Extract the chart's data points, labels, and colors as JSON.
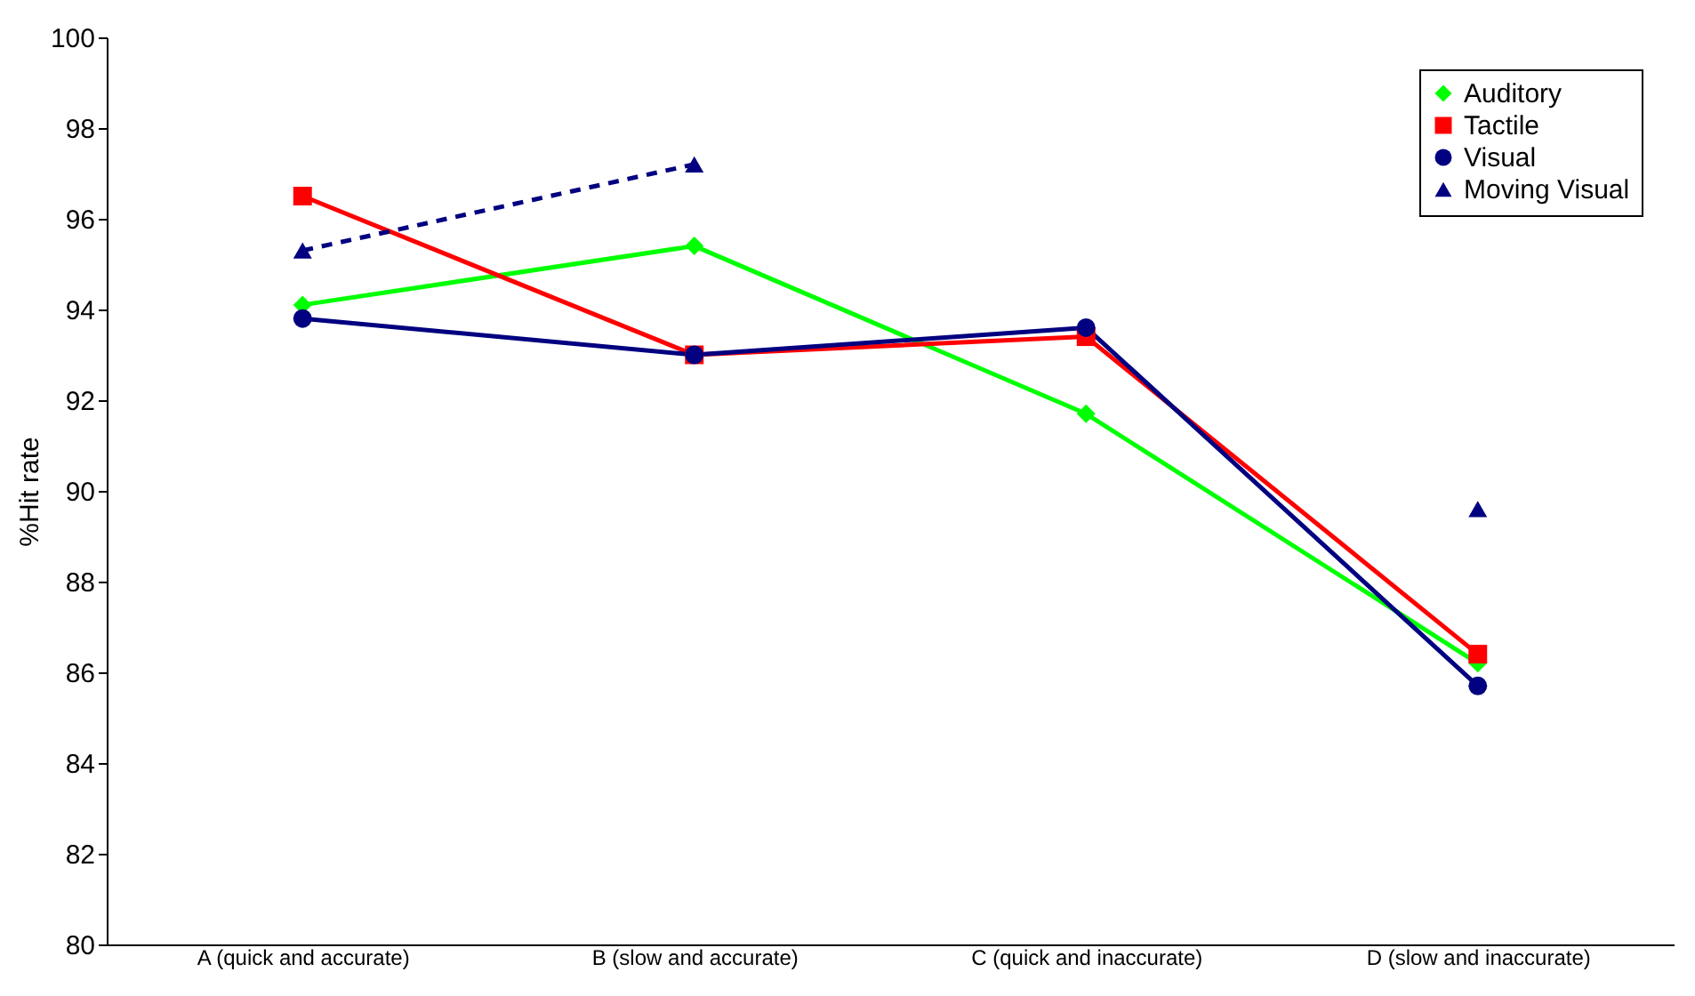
{
  "chart_data": {
    "type": "line",
    "ylabel": "%Hit rate",
    "categories": [
      "A (quick and accurate)",
      "B (slow and accurate)",
      "C (quick and inaccurate)",
      "D (slow and inaccurate)"
    ],
    "series": [
      {
        "name": "Auditory",
        "color": "#00ff00",
        "marker": "diamond",
        "line_style": "solid",
        "values": [
          94.1,
          95.4,
          91.7,
          86.2
        ]
      },
      {
        "name": "Tactile",
        "color": "#ff0000",
        "marker": "square",
        "line_style": "solid",
        "values": [
          96.5,
          93.0,
          93.4,
          86.4
        ]
      },
      {
        "name": "Visual",
        "color": "#000080",
        "marker": "circle",
        "line_style": "solid",
        "values": [
          93.8,
          93.0,
          93.6,
          85.7
        ]
      },
      {
        "name": "Moving Visual",
        "color": "#000080",
        "marker": "triangle",
        "line_style": "dashed",
        "values": [
          95.3,
          97.2,
          null,
          89.6
        ]
      }
    ],
    "ylim": [
      80,
      100
    ],
    "yticks": [
      80,
      82,
      84,
      86,
      88,
      90,
      92,
      94,
      96,
      98,
      100
    ],
    "grid": false,
    "legend": "top right"
  }
}
